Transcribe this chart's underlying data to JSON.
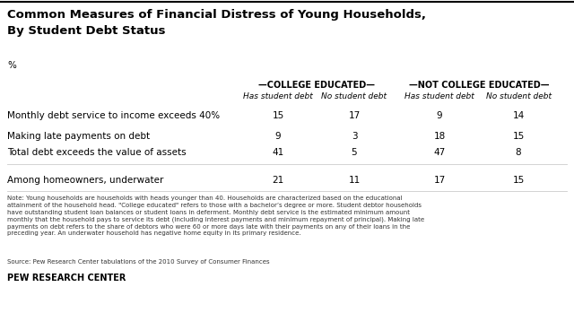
{
  "title_line1": "Common Measures of Financial Distress of Young Households,",
  "title_line2": "By Student Debt Status",
  "percent_label": "%",
  "col_group1": "—COLLEGE EDUCATED—",
  "col_group2": "—NOT COLLEGE EDUCATED—",
  "col_sub1": "Has student debt",
  "col_sub2": "No student debt",
  "col_sub3": "Has student debt",
  "col_sub4": "No student debt",
  "rows": [
    {
      "label": "Monthly debt service to income exceeds 40%",
      "vals": [
        15,
        17,
        9,
        14
      ]
    },
    {
      "label": "Making late payments on debt",
      "vals": [
        9,
        3,
        18,
        15
      ]
    },
    {
      "label": "Total debt exceeds the value of assets",
      "vals": [
        41,
        5,
        47,
        8
      ]
    }
  ],
  "row_extra": {
    "label": "Among homeowners, underwater",
    "vals": [
      21,
      11,
      17,
      15
    ]
  },
  "note": "Note: Young households are households with heads younger than 40. Households are characterized based on the educational\nattainment of the household head. \"College educated\" refers to those with a bachelor’s degree or more. Student debtor households\nhave outstanding student loan balances or student loans in deferment. Monthly debt service is the estimated minimum amount\nmonthly that the household pays to service its debt (including interest payments and minimum repayment of principal). Making late\npayments on debt refers to the share of debtors who were 60 or more days late with their payments on any of their loans in the\npreceding year. An underwater household has negative home equity in its primary residence.",
  "source": "Source: Pew Research Center tabulations of the 2010 Survey of Consumer Finances",
  "branding": "PEW RESEARCH CENTER",
  "bg_color": "#ffffff",
  "text_color": "#000000"
}
